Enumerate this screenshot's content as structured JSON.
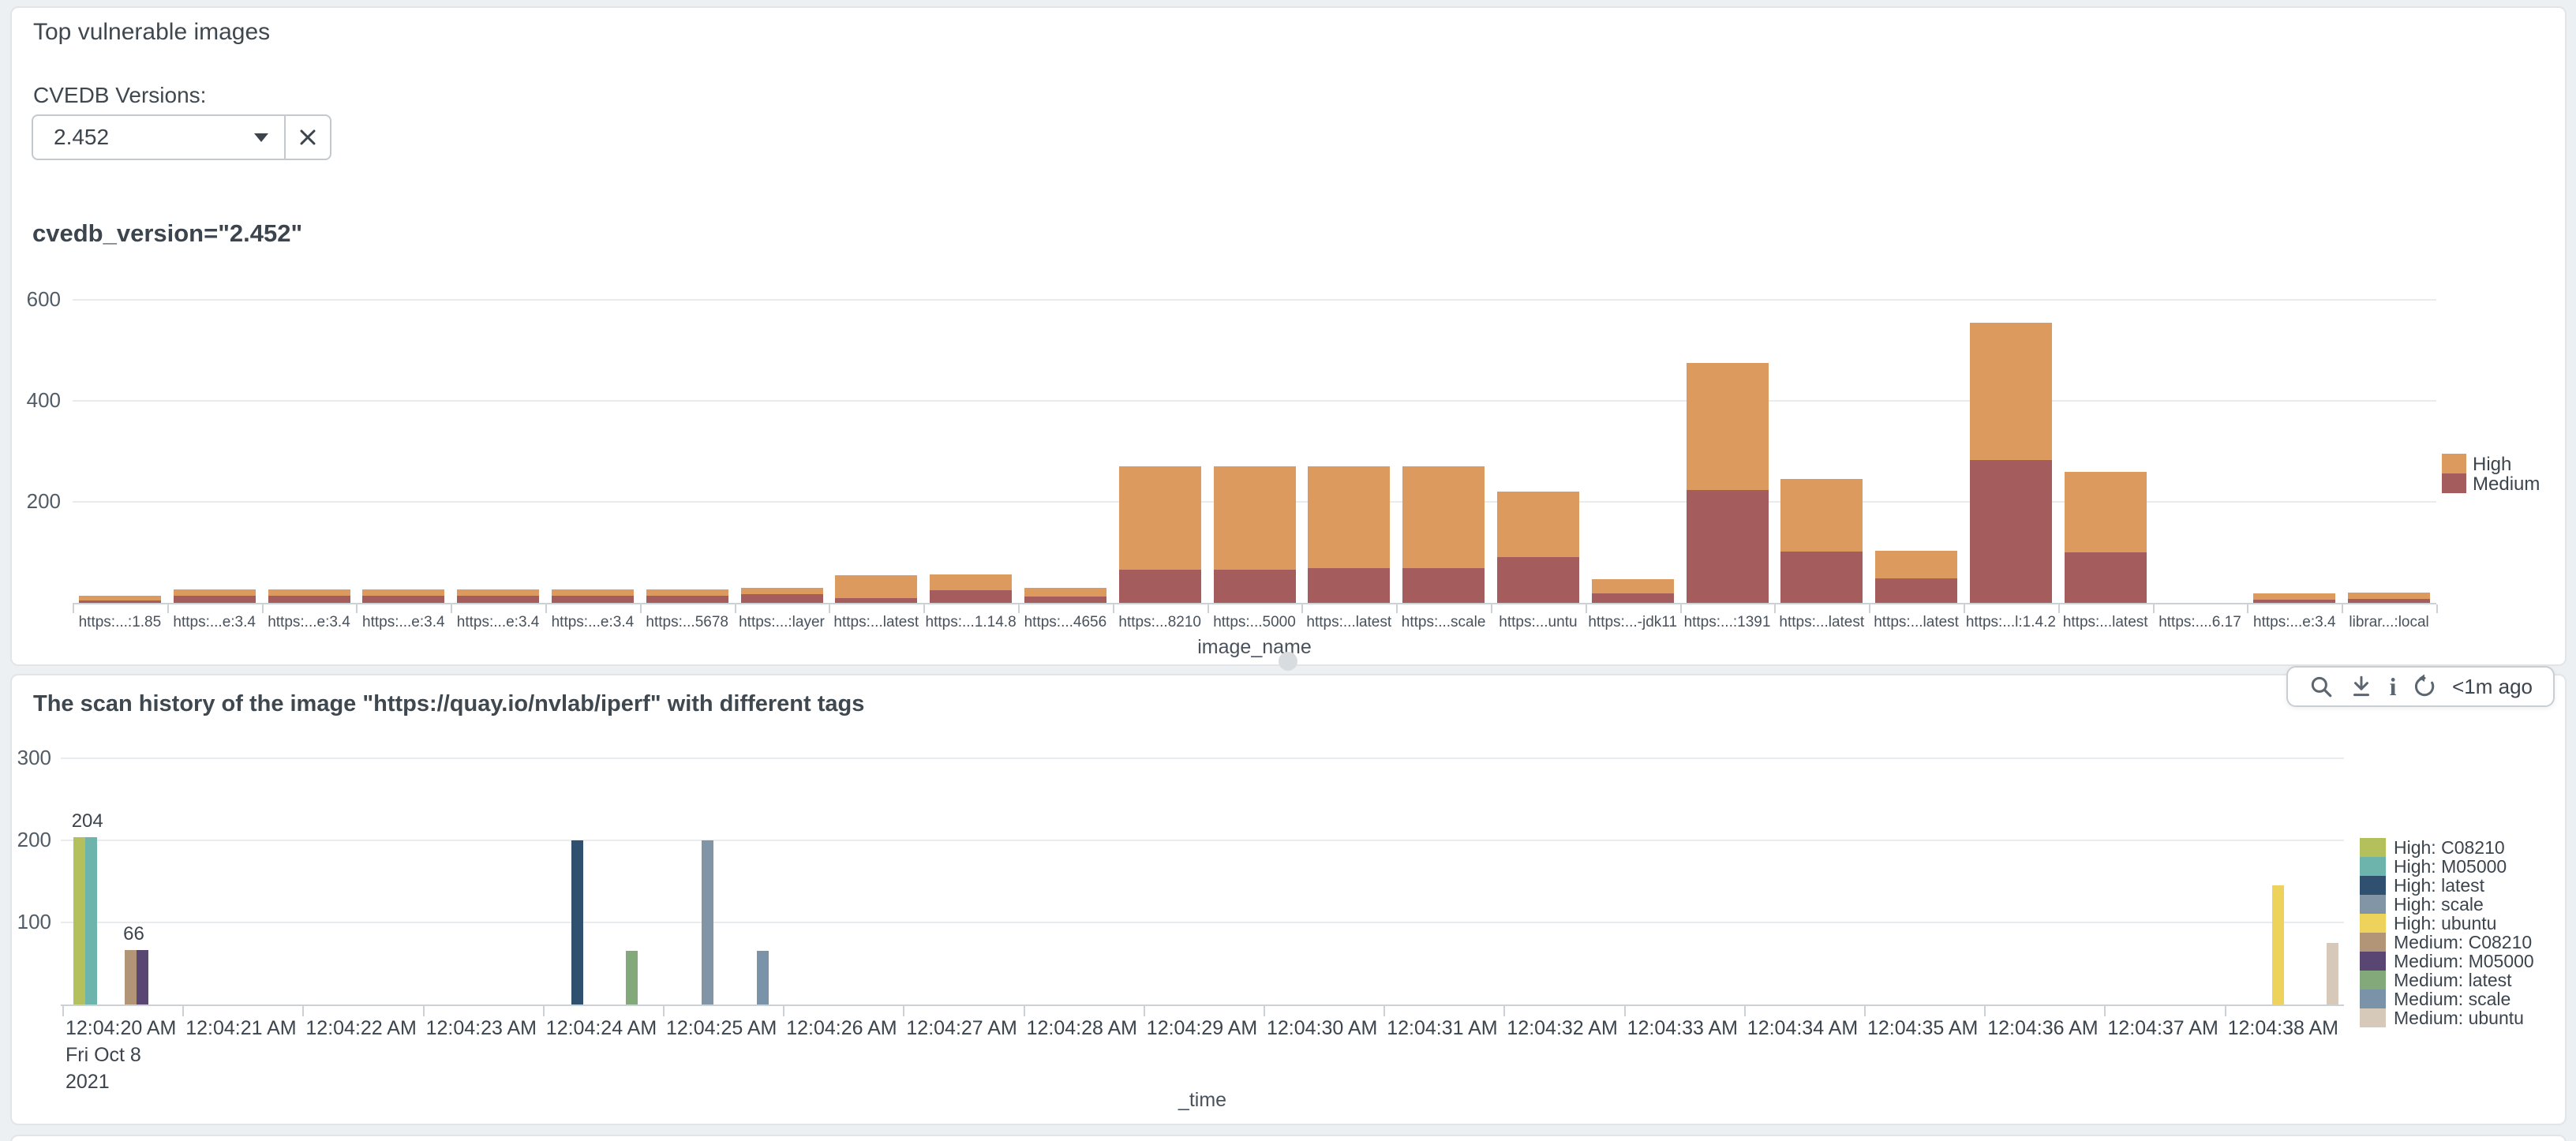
{
  "panel_vulnerable": {
    "title": "Top vulnerable images",
    "filter_label": "CVEDB Versions:",
    "dropdown_value": "2.452",
    "query_title_prefix": "cvedb_version=",
    "query_title_value": "\"2.452\""
  },
  "toolbar": {
    "refresh_age": "<1m ago",
    "icons": [
      "search-icon",
      "download-icon",
      "info-icon",
      "refresh-icon"
    ]
  },
  "panel_scan_history": {
    "title": "The scan history of the image \"https://quay.io/nvlab/iperf\" with different tags"
  },
  "chart_data": [
    {
      "type": "bar",
      "stacked": true,
      "title": "cvedb_version=\"2.452\"",
      "xlabel": "image_name",
      "ylabel": "",
      "ylim": [
        0,
        650
      ],
      "yticks": [
        200,
        400,
        600
      ],
      "grid": true,
      "legend_position": "right",
      "stack_bottom_to_top": [
        "Medium",
        "High"
      ],
      "categories": [
        "https:...:1.85",
        "https:...e:3.4",
        "https:...e:3.4",
        "https:...e:3.4",
        "https:...e:3.4",
        "https:...e:3.4",
        "https:...5678",
        "https:...:layer",
        "https:...latest",
        "https:...1.14.8",
        "https:...4656",
        "https:...8210",
        "https:...5000",
        "https:...latest",
        "https:...scale",
        "https:...untu",
        "https:...-jdk11",
        "https:...:1391",
        "https:...latest",
        "https:...latest",
        "https:...l:1.4.2",
        "https:...latest",
        "https:....6.17",
        "https:...e:3.4",
        "librar...:local"
      ],
      "series": [
        {
          "name": "High",
          "color": "#dd9a5e",
          "values": [
            9,
            13,
            13,
            13,
            13,
            13,
            13,
            13,
            45,
            31,
            18,
            205,
            205,
            203,
            203,
            130,
            28,
            251,
            144,
            55,
            272,
            160,
            0,
            12,
            13
          ]
        },
        {
          "name": "Medium",
          "color": "#a55c5d",
          "values": [
            5,
            14,
            14,
            14,
            14,
            14,
            14,
            17,
            9,
            25,
            12,
            66,
            66,
            68,
            68,
            90,
            19,
            224,
            101,
            48,
            283,
            100,
            0,
            6,
            8
          ]
        }
      ]
    },
    {
      "type": "bar",
      "stacked": false,
      "title": "The scan history of the image \"https://quay.io/nvlab/iperf\" with different tags",
      "xlabel": "_time",
      "ylim": [
        0,
        350
      ],
      "yticks": [
        100,
        200,
        300
      ],
      "grid": true,
      "legend_position": "right",
      "x_ticks": [
        "12:04:20 AM",
        "12:04:21 AM",
        "12:04:22 AM",
        "12:04:23 AM",
        "12:04:24 AM",
        "12:04:25 AM",
        "12:04:26 AM",
        "12:04:27 AM",
        "12:04:28 AM",
        "12:04:29 AM",
        "12:04:30 AM",
        "12:04:31 AM",
        "12:04:32 AM",
        "12:04:33 AM",
        "12:04:34 AM",
        "12:04:35 AM",
        "12:04:36 AM",
        "12:04:37 AM",
        "12:04:38 AM"
      ],
      "x_first_tick_sublabels": [
        "Fri Oct 8",
        "2021"
      ],
      "legend": [
        {
          "label": "High: C08210",
          "color": "#b3c05c"
        },
        {
          "label": "High: M05000",
          "color": "#6db4ad"
        },
        {
          "label": "High: latest",
          "color": "#30506f"
        },
        {
          "label": "High: scale",
          "color": "#8195a7"
        },
        {
          "label": "High: ubuntu",
          "color": "#edd25c"
        },
        {
          "label": "Medium: C08210",
          "color": "#b29576"
        },
        {
          "label": "Medium: M05000",
          "color": "#5a4673"
        },
        {
          "label": "Medium: latest",
          "color": "#83a87a"
        },
        {
          "label": "Medium: scale",
          "color": "#7a93a8"
        },
        {
          "label": "Medium: ubuntu",
          "color": "#d6c9b9"
        }
      ],
      "bars": [
        {
          "series": "High: C08210",
          "time_s": 20.09,
          "value": 204
        },
        {
          "series": "High: M05000",
          "time_s": 20.19,
          "value": 204
        },
        {
          "series": "Medium: C08210",
          "time_s": 20.52,
          "value": 66
        },
        {
          "series": "Medium: M05000",
          "time_s": 20.62,
          "value": 66
        },
        {
          "series": "High: latest",
          "time_s": 24.24,
          "value": 200
        },
        {
          "series": "Medium: latest",
          "time_s": 24.69,
          "value": 65
        },
        {
          "series": "High: scale",
          "time_s": 25.32,
          "value": 200
        },
        {
          "series": "Medium: scale",
          "time_s": 25.78,
          "value": 65
        },
        {
          "series": "High: ubuntu",
          "time_s": 38.4,
          "value": 145
        },
        {
          "series": "Medium: ubuntu",
          "time_s": 38.85,
          "value": 75
        }
      ],
      "annotations": [
        {
          "text": "204",
          "time_s": 20.09,
          "value": 204
        },
        {
          "text": "66",
          "time_s": 20.52,
          "value": 66
        }
      ]
    }
  ]
}
